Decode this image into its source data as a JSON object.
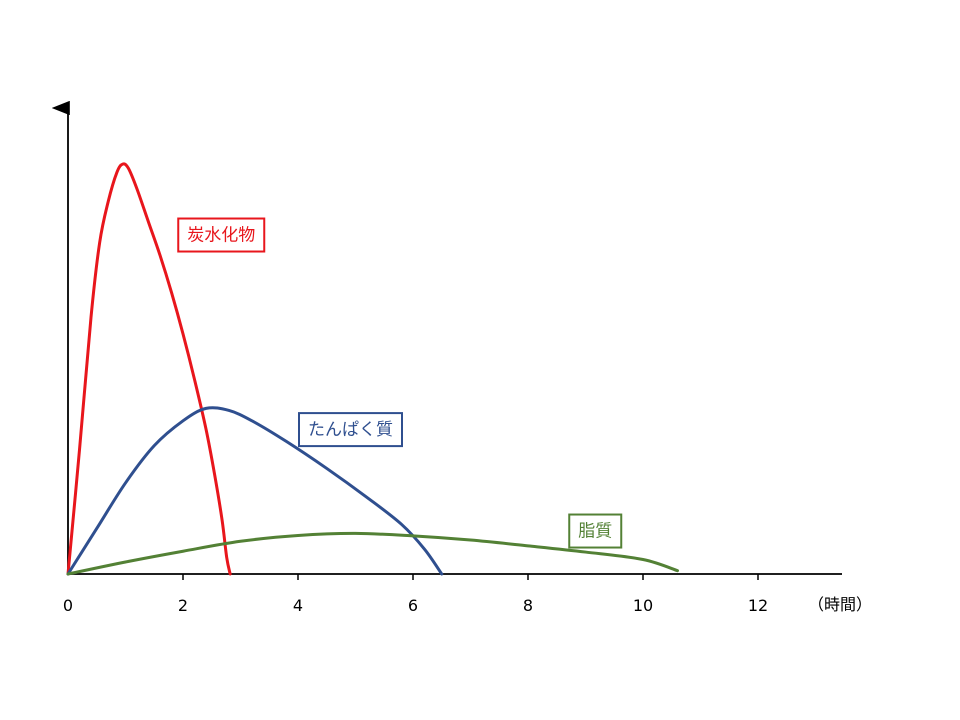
{
  "chart_data": {
    "type": "line",
    "xlabel": "（時間）",
    "ylabel": "",
    "xlim": [
      0,
      13.5
    ],
    "ylim": [
      0,
      100
    ],
    "x_ticks": [
      "0",
      "2",
      "4",
      "6",
      "8",
      "10",
      "12"
    ],
    "grid": false,
    "series": [
      {
        "name": "炭水化物",
        "color": "#e8161c",
        "label_anchor": [
          1.9,
          82
        ],
        "points": [
          [
            0,
            0
          ],
          [
            0.2,
            30
          ],
          [
            0.4,
            62
          ],
          [
            0.55,
            80
          ],
          [
            0.7,
            90
          ],
          [
            0.85,
            97
          ],
          [
            0.95,
            99
          ],
          [
            1.05,
            98
          ],
          [
            1.2,
            93
          ],
          [
            1.4,
            85
          ],
          [
            1.6,
            77
          ],
          [
            1.8,
            68
          ],
          [
            2.0,
            58
          ],
          [
            2.2,
            47
          ],
          [
            2.4,
            35
          ],
          [
            2.55,
            24
          ],
          [
            2.68,
            13
          ],
          [
            2.76,
            4
          ],
          [
            2.82,
            0
          ]
        ]
      },
      {
        "name": "たんぱく質",
        "color": "#2f4f8f",
        "label_anchor": [
          4.0,
          35
        ],
        "points": [
          [
            0,
            0
          ],
          [
            0.5,
            11
          ],
          [
            1,
            22
          ],
          [
            1.5,
            31
          ],
          [
            2,
            37
          ],
          [
            2.4,
            40
          ],
          [
            2.8,
            39.5
          ],
          [
            3.2,
            37
          ],
          [
            3.8,
            32
          ],
          [
            4.5,
            25.5
          ],
          [
            5.2,
            18.5
          ],
          [
            5.8,
            12
          ],
          [
            6.2,
            6
          ],
          [
            6.5,
            0
          ]
        ]
      },
      {
        "name": "脂質",
        "color": "#538135",
        "label_anchor": [
          8.7,
          10.5
        ],
        "points": [
          [
            0,
            0
          ],
          [
            1,
            2.9
          ],
          [
            2,
            5.5
          ],
          [
            3,
            7.9
          ],
          [
            4,
            9.3
          ],
          [
            5,
            9.8
          ],
          [
            6,
            9.2
          ],
          [
            7,
            8.2
          ],
          [
            8,
            6.8
          ],
          [
            9,
            5.3
          ],
          [
            10,
            3.5
          ],
          [
            10.6,
            0.8
          ]
        ]
      }
    ]
  }
}
